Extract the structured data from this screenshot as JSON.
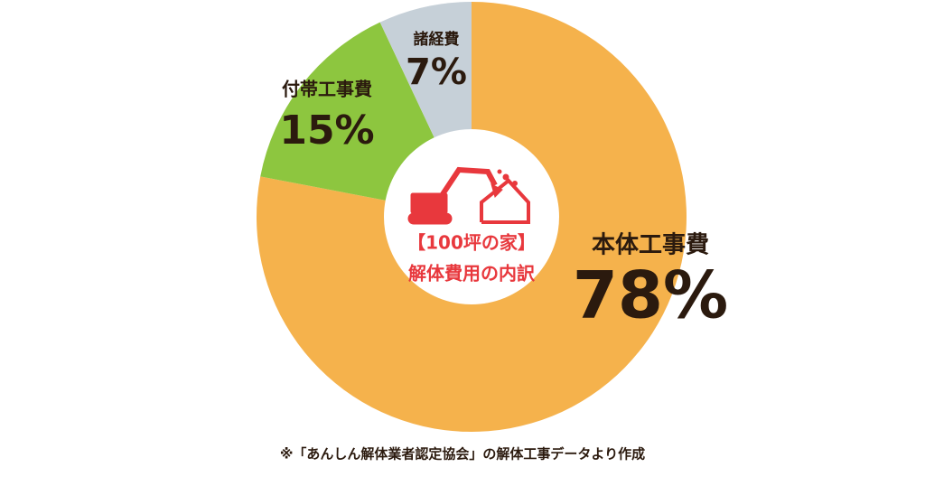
{
  "chart_data": {
    "type": "donut",
    "categories": [
      "本体工事費",
      "付帯工事費",
      "諸経費"
    ],
    "values": [
      78,
      15,
      7
    ],
    "value_labels": [
      "78%",
      "15%",
      "7%"
    ],
    "colors": [
      "#f5b24c",
      "#8dc63f",
      "#c6d0d8"
    ],
    "center_text": [
      "【100坪の家】",
      "解体費用の内訳"
    ],
    "center_color": "#e8383d",
    "note": "※「あんしん解体業者認定協会」の解体工事データより作成"
  }
}
